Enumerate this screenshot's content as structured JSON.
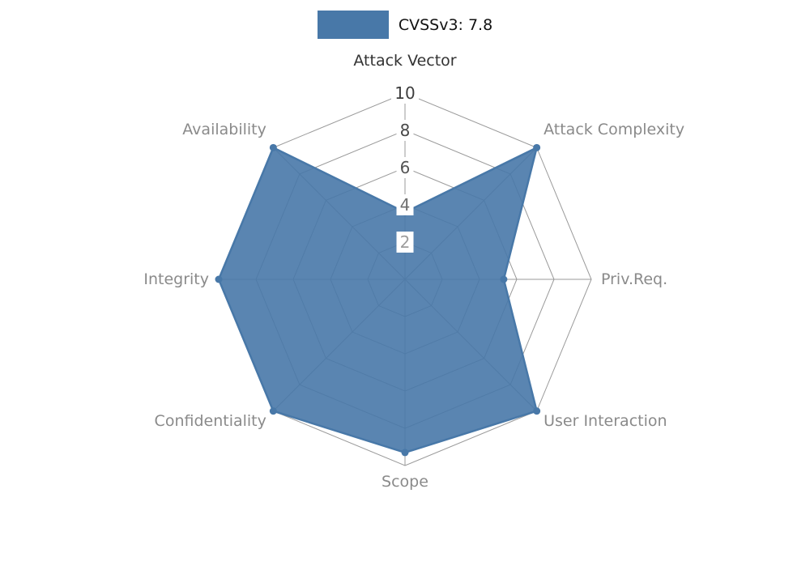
{
  "legend": {
    "label": "CVSSv3: 7.8",
    "swatch_color": "#4878a8",
    "position": "top-center"
  },
  "chart_data": {
    "type": "radar",
    "title": "CVSSv3: 7.8",
    "color": "#4878a8",
    "grid_color": "#9a9a9a",
    "grid": true,
    "rlim": [
      0,
      10
    ],
    "axes": [
      {
        "label": "Attack Vector",
        "value": 3.6,
        "color": "#333333"
      },
      {
        "label": "Attack Complexity",
        "value": 10,
        "color": "#8a8a8a"
      },
      {
        "label": "Priv.Req.",
        "value": 5.3,
        "color": "#8a8a8a"
      },
      {
        "label": "User Interaction",
        "value": 10,
        "color": "#8a8a8a"
      },
      {
        "label": "Scope",
        "value": 9.3,
        "color": "#8a8a8a"
      },
      {
        "label": "Confidentiality",
        "value": 10,
        "color": "#8a8a8a"
      },
      {
        "label": "Integrity",
        "value": 10,
        "color": "#8a8a8a"
      },
      {
        "label": "Availability",
        "value": 10,
        "color": "#8a8a8a"
      }
    ],
    "radial_ticks": [
      {
        "value": 10,
        "color": "#3d3d3d"
      },
      {
        "value": 8,
        "color": "#474747"
      },
      {
        "value": 6,
        "color": "#545454"
      },
      {
        "value": 4,
        "color": "#6e6e6e"
      },
      {
        "value": 2,
        "color": "#9d9d9d"
      }
    ]
  }
}
